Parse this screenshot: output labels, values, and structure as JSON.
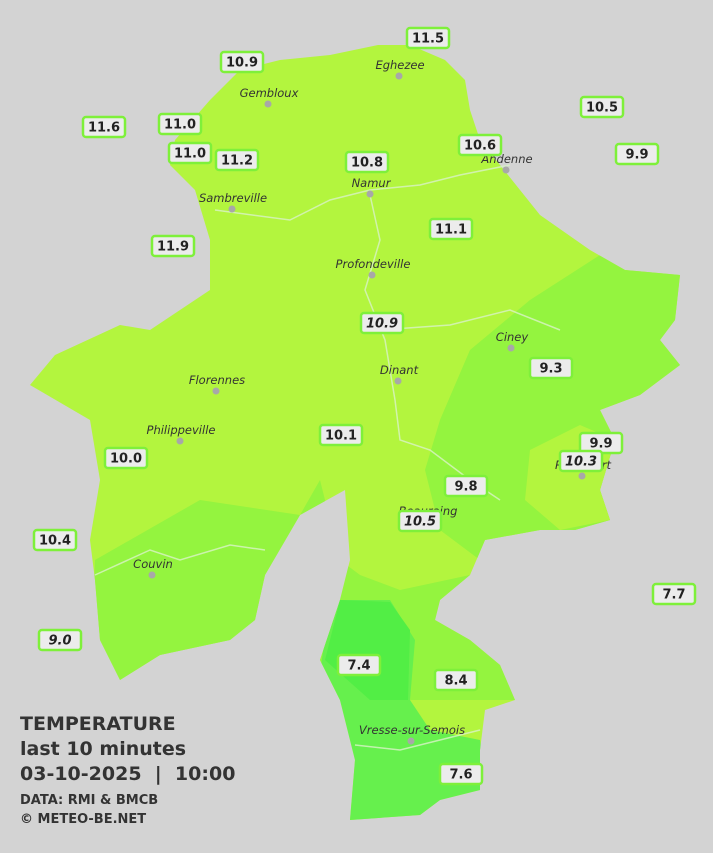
{
  "legend": {
    "title": "TEMPERATURE",
    "period": "last 10 minutes",
    "datetime": "03-10-2025  |  10:00",
    "source": "DATA: RMI & BMCB",
    "credit": "© METEO-BE.NET"
  },
  "cities": [
    "Eghezee",
    "Gembloux",
    "Andenne",
    "Namur",
    "Sambreville",
    "Profondeville",
    "Ciney",
    "Dinant",
    "Florennes",
    "Philippeville",
    "Beauraing",
    "Rochefort",
    "Couvin",
    "Vresse-sur-Semois"
  ],
  "stations": [
    "11.5",
    "10.9",
    "10.5",
    "11.6",
    "11.0",
    "11.0",
    "11.2",
    "10.8",
    "10.6",
    "9.9",
    "11.9",
    "11.1",
    "10.9",
    "9.3",
    "10.1",
    "9.9",
    "10.3",
    "10.0",
    "9.8",
    "10.5",
    "10.4",
    "7.7",
    "9.0",
    "7.4",
    "8.4",
    "7.6"
  ]
}
